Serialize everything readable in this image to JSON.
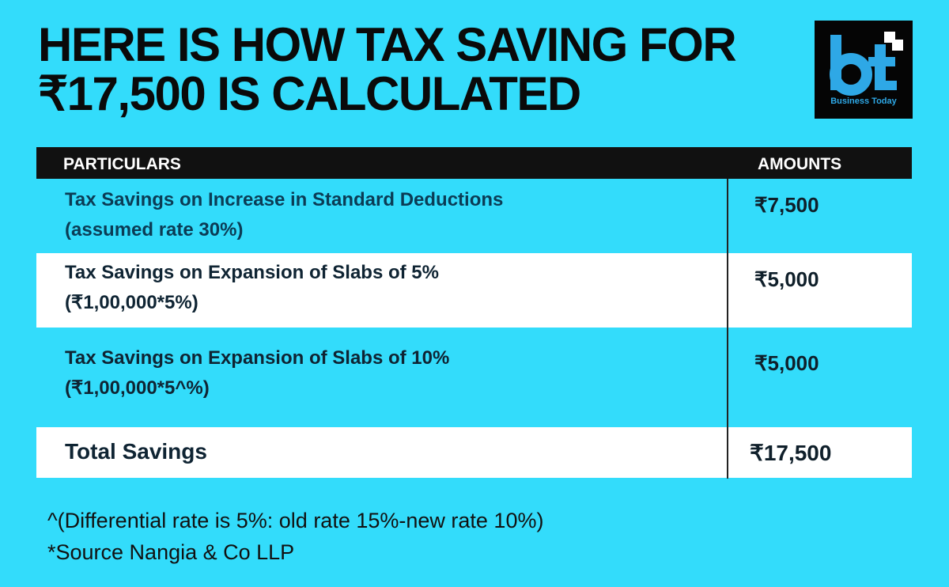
{
  "title": {
    "line1": "HERE IS HOW TAX SAVING FOR",
    "line2": "₹17,500 IS CALCULATED"
  },
  "logo": {
    "mark": "bt",
    "tagline": "Business Today"
  },
  "table": {
    "headers": [
      "PARTICULARS",
      "AMOUNTS"
    ],
    "rows": [
      {
        "line1": "Tax Savings on Increase in Standard Deductions",
        "line2": "(assumed rate 30%)",
        "amount": "₹7,500"
      },
      {
        "line1": "Tax Savings on Expansion of Slabs of 5%",
        "line2": "(₹1,00,000*5%)",
        "amount": "₹5,000"
      },
      {
        "line1": "Tax Savings on Expansion of Slabs of 10%",
        "line2": "(₹1,00,000*5^%)",
        "amount": "₹5,000"
      },
      {
        "line1": "Total Savings",
        "line2": "",
        "amount": "₹17,500"
      }
    ]
  },
  "notes": [
    "^(Differential rate is 5%: old rate 15%-new rate 10%)",
    "*Source Nangia & Co LLP"
  ],
  "colors": {
    "background": "#33dcfb",
    "header_bg": "#111111",
    "logo_blue": "#2ea8e6"
  }
}
